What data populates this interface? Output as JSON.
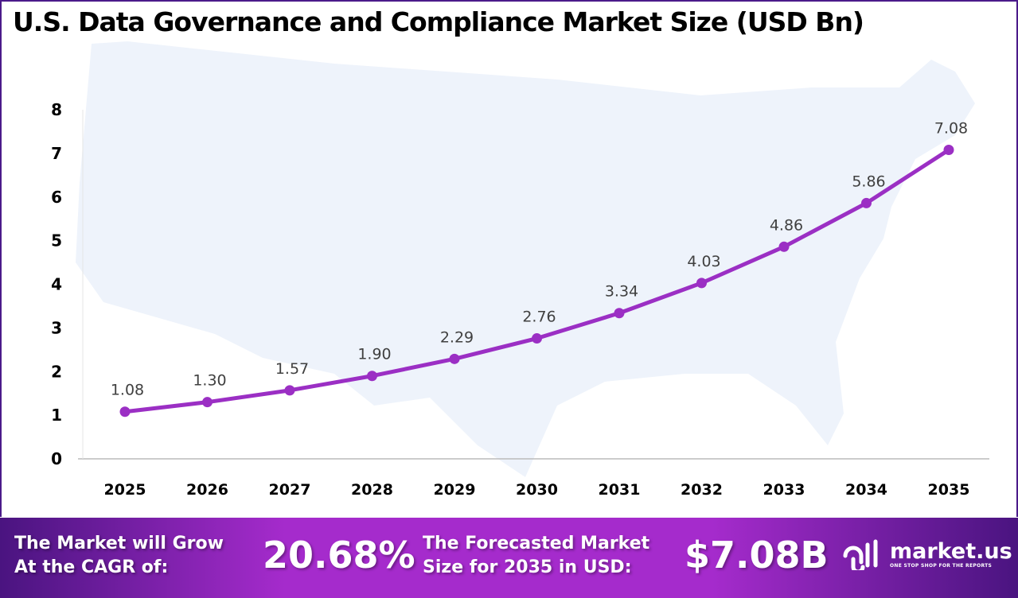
{
  "chart_data": {
    "type": "line",
    "title": "U.S. Data Governance and Compliance Market Size (USD Bn)",
    "categories": [
      "2025",
      "2026",
      "2027",
      "2028",
      "2029",
      "2030",
      "2031",
      "2032",
      "2033",
      "2034",
      "2035"
    ],
    "values": [
      1.08,
      1.3,
      1.57,
      1.9,
      2.29,
      2.76,
      3.34,
      4.03,
      4.86,
      5.86,
      7.08
    ],
    "data_labels": [
      "1.08",
      "1.30",
      "1.57",
      "1.90",
      "2.29",
      "2.76",
      "3.34",
      "4.03",
      "4.86",
      "5.86",
      "7.08"
    ],
    "ylim": [
      0,
      8
    ],
    "yticks": [
      "0",
      "1",
      "2",
      "3",
      "4",
      "5",
      "6",
      "7",
      "8"
    ],
    "grid": false,
    "line_color": "#9b2fc4"
  },
  "banner": {
    "cagr_label_1": "The Market will Grow",
    "cagr_label_2": "At the CAGR of:",
    "cagr_value": "20.68%",
    "forecast_label_1": "The Forecasted Market",
    "forecast_label_2": "Size for 2035 in USD:",
    "forecast_value": "$7.08B",
    "logo_text": "market.us",
    "logo_tagline": "ONE STOP SHOP FOR THE REPORTS"
  }
}
